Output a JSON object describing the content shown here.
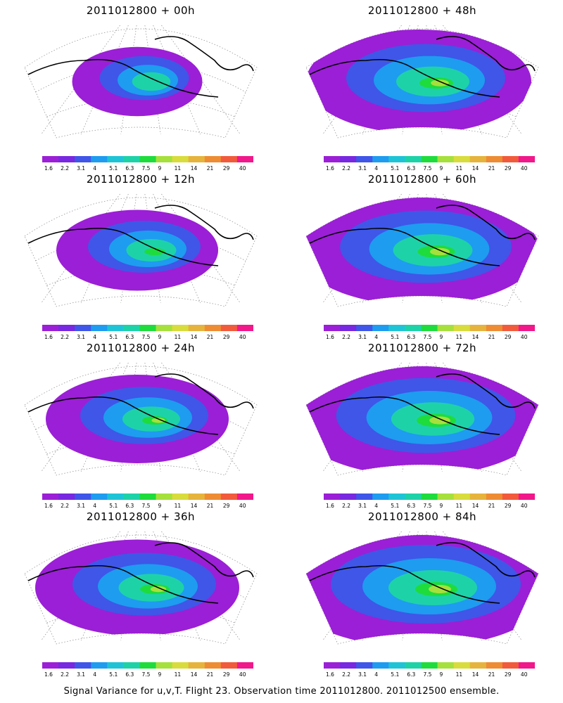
{
  "panels": [
    {
      "title": "2011012800 + 00h",
      "spread": 0.35
    },
    {
      "title": "2011012800 + 48h",
      "spread": 0.8
    },
    {
      "title": "2011012800 + 12h",
      "spread": 0.5
    },
    {
      "title": "2011012800 + 60h",
      "spread": 0.88
    },
    {
      "title": "2011012800 + 24h",
      "spread": 0.6
    },
    {
      "title": "2011012800 + 72h",
      "spread": 0.93
    },
    {
      "title": "2011012800 + 36h",
      "spread": 0.7
    },
    {
      "title": "2011012800 + 84h",
      "spread": 1.0
    }
  ],
  "colorbar": {
    "labels": [
      "1.6",
      "2.2",
      "3.1",
      "4",
      "5.1",
      "6.3",
      "7.5",
      "9",
      "11",
      "14",
      "21",
      "29",
      "40"
    ],
    "colors": [
      "#9b1fd6",
      "#7828e0",
      "#3f56e8",
      "#1e9cf0",
      "#1ec4d6",
      "#1ed2a8",
      "#1edc3c",
      "#a6e03c",
      "#d8dc3c",
      "#e6b43c",
      "#ee8c34",
      "#f25a3c",
      "#f0188a"
    ]
  },
  "footer": "Signal Variance for u,v,T. Flight 23. Observation time 2011012800. 2011012500 ensemble."
}
